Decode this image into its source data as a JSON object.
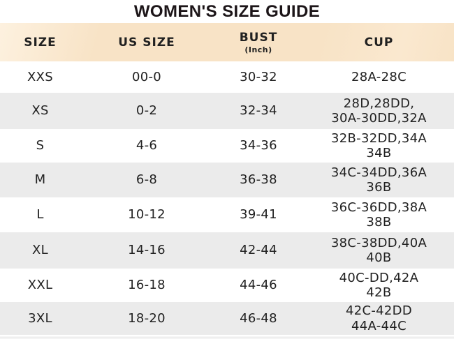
{
  "colors": {
    "title": "#1c1518",
    "text": "#212121",
    "header_bg": "#f8e3c6",
    "header_bg_light": "#fdf1df",
    "row_alt": "#ebebeb"
  },
  "chart_data": {
    "type": "table",
    "title": "WOMEN'S SIZE GUIDE",
    "header": [
      {
        "label": "SIZE",
        "sublabel": ""
      },
      {
        "label": "US SIZE",
        "sublabel": ""
      },
      {
        "label": "BUST",
        "sublabel": "(Inch)"
      },
      {
        "label": "CUP",
        "sublabel": ""
      }
    ],
    "rows": [
      [
        "XXS",
        "00-0",
        "30-32",
        "28A-28C"
      ],
      [
        "XS",
        "0-2",
        "32-34",
        "28D,28DD,\n30A-30DD,32A"
      ],
      [
        "S",
        "4-6",
        "34-36",
        "32B-32DD,34A\n34B"
      ],
      [
        "M",
        "6-8",
        "36-38",
        "34C-34DD,36A\n36B"
      ],
      [
        "L",
        "10-12",
        "39-41",
        "36C-36DD,38A\n38B"
      ],
      [
        "XL",
        "14-16",
        "42-44",
        "38C-38DD,40A\n40B"
      ],
      [
        "XXL",
        "16-18",
        "44-46",
        "40C-DD,42A\n42B"
      ],
      [
        "3XL",
        "18-20",
        "46-48",
        "42C-42DD\n44A-44C"
      ]
    ]
  }
}
